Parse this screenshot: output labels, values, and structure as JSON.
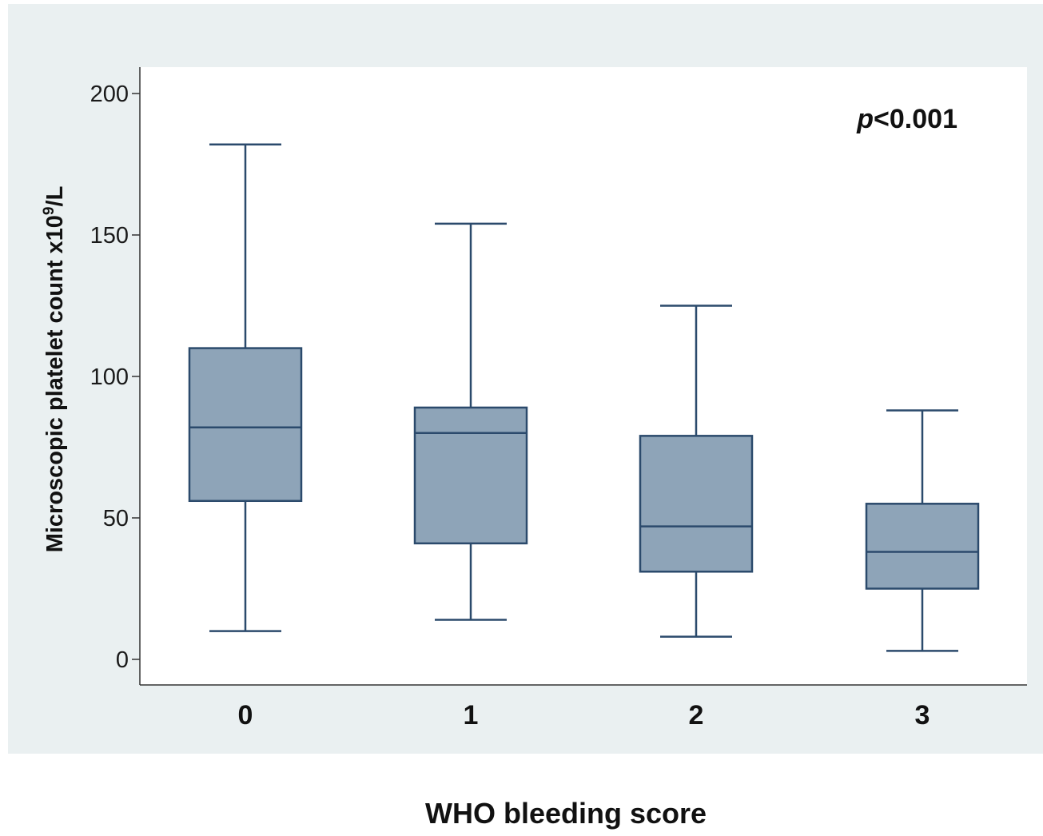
{
  "chart_data": {
    "type": "box",
    "xlabel": "WHO bleeding score",
    "ylabel_main": "Microscopic platelet count x10",
    "ylabel_sup": "9",
    "ylabel_tail": "/L",
    "annotation_italic": "p",
    "annotation_rest": "<0.001",
    "ylim": [
      0,
      200
    ],
    "yticks": [
      0,
      50,
      100,
      150,
      200
    ],
    "categories": [
      "0",
      "1",
      "2",
      "3"
    ],
    "boxes": [
      {
        "category": "0",
        "whisker_low": 10,
        "q1": 56,
        "median": 82,
        "q3": 110,
        "whisker_high": 182
      },
      {
        "category": "1",
        "whisker_low": 14,
        "q1": 41,
        "median": 80,
        "q3": 89,
        "whisker_high": 154
      },
      {
        "category": "2",
        "whisker_low": 8,
        "q1": 31,
        "median": 47,
        "q3": 79,
        "whisker_high": 125
      },
      {
        "category": "3",
        "whisker_low": 3,
        "q1": 25,
        "median": 38,
        "q3": 55,
        "whisker_high": 88
      }
    ],
    "colors": {
      "outer_background": "#eaf0f1",
      "plot_background": "#ffffff",
      "box_fill": "#8ea4b8",
      "box_stroke": "#2b4a6c",
      "axis": "#333333"
    }
  }
}
